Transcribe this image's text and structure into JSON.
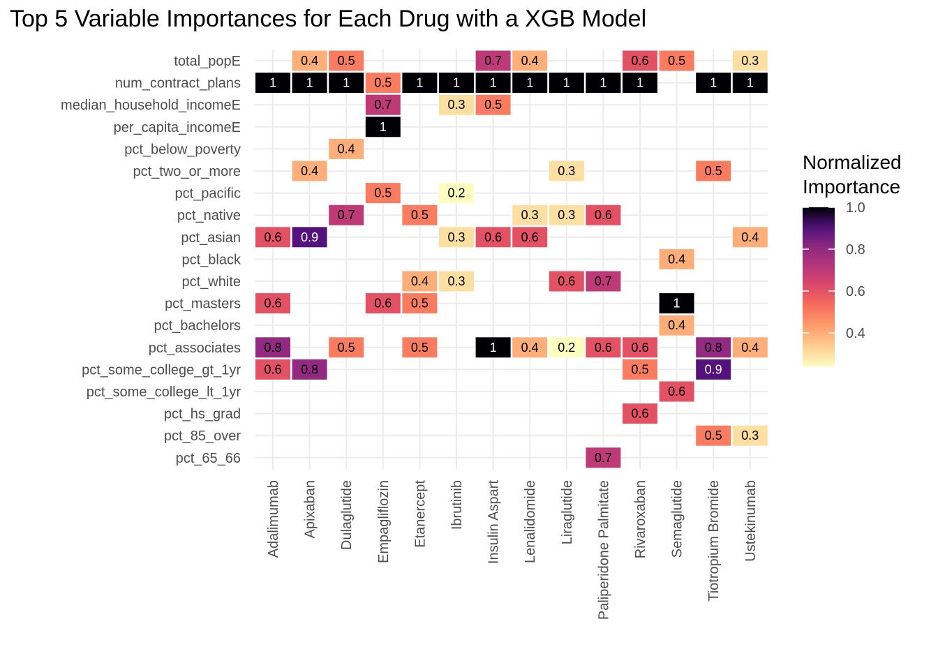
{
  "chart_data": {
    "type": "heatmap",
    "title": "Top 5 Variable Importances for Each Drug with a XGB Model",
    "xlabel": "",
    "ylabel": "",
    "x_categories": [
      "Adalimumab",
      "Apixaban",
      "Dulaglutide",
      "Empagliflozin",
      "Etanercept",
      "Ibrutinib",
      "Insulin Aspart",
      "Lenalidomide",
      "Liraglutide",
      "Paliperidone Palmitate",
      "Rivaroxaban",
      "Semaglutide",
      "Tiotropium Bromide",
      "Ustekinumab"
    ],
    "y_categories": [
      "total_popE",
      "num_contract_plans",
      "median_household_incomeE",
      "per_capita_incomeE",
      "pct_below_poverty",
      "pct_two_or_more",
      "pct_pacific",
      "pct_native",
      "pct_asian",
      "pct_black",
      "pct_white",
      "pct_masters",
      "pct_bachelors",
      "pct_associates",
      "pct_some_college_gt_1yr",
      "pct_some_college_lt_1yr",
      "pct_hs_grad",
      "pct_85_over",
      "pct_65_66"
    ],
    "cells": [
      {
        "x": "Apixaban",
        "y": "total_popE",
        "value": 0.4,
        "label": "0.4"
      },
      {
        "x": "Dulaglutide",
        "y": "total_popE",
        "value": 0.5,
        "label": "0.5"
      },
      {
        "x": "Insulin Aspart",
        "y": "total_popE",
        "value": 0.7,
        "label": "0.7"
      },
      {
        "x": "Lenalidomide",
        "y": "total_popE",
        "value": 0.4,
        "label": "0.4"
      },
      {
        "x": "Rivaroxaban",
        "y": "total_popE",
        "value": 0.6,
        "label": "0.6"
      },
      {
        "x": "Semaglutide",
        "y": "total_popE",
        "value": 0.5,
        "label": "0.5"
      },
      {
        "x": "Ustekinumab",
        "y": "total_popE",
        "value": 0.3,
        "label": "0.3"
      },
      {
        "x": "Adalimumab",
        "y": "num_contract_plans",
        "value": 1.0,
        "label": "1"
      },
      {
        "x": "Apixaban",
        "y": "num_contract_plans",
        "value": 1.0,
        "label": "1"
      },
      {
        "x": "Dulaglutide",
        "y": "num_contract_plans",
        "value": 1.0,
        "label": "1"
      },
      {
        "x": "Empagliflozin",
        "y": "num_contract_plans",
        "value": 0.5,
        "label": "0.5"
      },
      {
        "x": "Etanercept",
        "y": "num_contract_plans",
        "value": 1.0,
        "label": "1"
      },
      {
        "x": "Ibrutinib",
        "y": "num_contract_plans",
        "value": 1.0,
        "label": "1"
      },
      {
        "x": "Insulin Aspart",
        "y": "num_contract_plans",
        "value": 1.0,
        "label": "1"
      },
      {
        "x": "Lenalidomide",
        "y": "num_contract_plans",
        "value": 1.0,
        "label": "1"
      },
      {
        "x": "Liraglutide",
        "y": "num_contract_plans",
        "value": 1.0,
        "label": "1"
      },
      {
        "x": "Paliperidone Palmitate",
        "y": "num_contract_plans",
        "value": 1.0,
        "label": "1"
      },
      {
        "x": "Rivaroxaban",
        "y": "num_contract_plans",
        "value": 1.0,
        "label": "1"
      },
      {
        "x": "Tiotropium Bromide",
        "y": "num_contract_plans",
        "value": 1.0,
        "label": "1"
      },
      {
        "x": "Ustekinumab",
        "y": "num_contract_plans",
        "value": 1.0,
        "label": "1"
      },
      {
        "x": "Empagliflozin",
        "y": "median_household_incomeE",
        "value": 0.7,
        "label": "0.7"
      },
      {
        "x": "Ibrutinib",
        "y": "median_household_incomeE",
        "value": 0.3,
        "label": "0.3"
      },
      {
        "x": "Insulin Aspart",
        "y": "median_household_incomeE",
        "value": 0.5,
        "label": "0.5"
      },
      {
        "x": "Empagliflozin",
        "y": "per_capita_incomeE",
        "value": 1.0,
        "label": "1"
      },
      {
        "x": "Dulaglutide",
        "y": "pct_below_poverty",
        "value": 0.4,
        "label": "0.4"
      },
      {
        "x": "Apixaban",
        "y": "pct_two_or_more",
        "value": 0.4,
        "label": "0.4"
      },
      {
        "x": "Liraglutide",
        "y": "pct_two_or_more",
        "value": 0.3,
        "label": "0.3"
      },
      {
        "x": "Tiotropium Bromide",
        "y": "pct_two_or_more",
        "value": 0.5,
        "label": "0.5"
      },
      {
        "x": "Empagliflozin",
        "y": "pct_pacific",
        "value": 0.5,
        "label": "0.5"
      },
      {
        "x": "Ibrutinib",
        "y": "pct_pacific",
        "value": 0.2,
        "label": "0.2"
      },
      {
        "x": "Dulaglutide",
        "y": "pct_native",
        "value": 0.7,
        "label": "0.7"
      },
      {
        "x": "Etanercept",
        "y": "pct_native",
        "value": 0.5,
        "label": "0.5"
      },
      {
        "x": "Lenalidomide",
        "y": "pct_native",
        "value": 0.3,
        "label": "0.3"
      },
      {
        "x": "Liraglutide",
        "y": "pct_native",
        "value": 0.3,
        "label": "0.3"
      },
      {
        "x": "Paliperidone Palmitate",
        "y": "pct_native",
        "value": 0.6,
        "label": "0.6"
      },
      {
        "x": "Adalimumab",
        "y": "pct_asian",
        "value": 0.6,
        "label": "0.6"
      },
      {
        "x": "Apixaban",
        "y": "pct_asian",
        "value": 0.9,
        "label": "0.9"
      },
      {
        "x": "Ibrutinib",
        "y": "pct_asian",
        "value": 0.3,
        "label": "0.3"
      },
      {
        "x": "Insulin Aspart",
        "y": "pct_asian",
        "value": 0.6,
        "label": "0.6"
      },
      {
        "x": "Lenalidomide",
        "y": "pct_asian",
        "value": 0.6,
        "label": "0.6"
      },
      {
        "x": "Ustekinumab",
        "y": "pct_asian",
        "value": 0.4,
        "label": "0.4"
      },
      {
        "x": "Semaglutide",
        "y": "pct_black",
        "value": 0.4,
        "label": "0.4"
      },
      {
        "x": "Etanercept",
        "y": "pct_white",
        "value": 0.4,
        "label": "0.4"
      },
      {
        "x": "Ibrutinib",
        "y": "pct_white",
        "value": 0.3,
        "label": "0.3"
      },
      {
        "x": "Liraglutide",
        "y": "pct_white",
        "value": 0.6,
        "label": "0.6"
      },
      {
        "x": "Paliperidone Palmitate",
        "y": "pct_white",
        "value": 0.7,
        "label": "0.7"
      },
      {
        "x": "Adalimumab",
        "y": "pct_masters",
        "value": 0.6,
        "label": "0.6"
      },
      {
        "x": "Empagliflozin",
        "y": "pct_masters",
        "value": 0.6,
        "label": "0.6"
      },
      {
        "x": "Etanercept",
        "y": "pct_masters",
        "value": 0.5,
        "label": "0.5"
      },
      {
        "x": "Semaglutide",
        "y": "pct_masters",
        "value": 1.0,
        "label": "1"
      },
      {
        "x": "Semaglutide",
        "y": "pct_bachelors",
        "value": 0.4,
        "label": "0.4"
      },
      {
        "x": "Adalimumab",
        "y": "pct_associates",
        "value": 0.8,
        "label": "0.8"
      },
      {
        "x": "Dulaglutide",
        "y": "pct_associates",
        "value": 0.5,
        "label": "0.5"
      },
      {
        "x": "Etanercept",
        "y": "pct_associates",
        "value": 0.5,
        "label": "0.5"
      },
      {
        "x": "Insulin Aspart",
        "y": "pct_associates",
        "value": 1.0,
        "label": "1"
      },
      {
        "x": "Lenalidomide",
        "y": "pct_associates",
        "value": 0.4,
        "label": "0.4"
      },
      {
        "x": "Liraglutide",
        "y": "pct_associates",
        "value": 0.2,
        "label": "0.2"
      },
      {
        "x": "Paliperidone Palmitate",
        "y": "pct_associates",
        "value": 0.6,
        "label": "0.6"
      },
      {
        "x": "Rivaroxaban",
        "y": "pct_associates",
        "value": 0.6,
        "label": "0.6"
      },
      {
        "x": "Tiotropium Bromide",
        "y": "pct_associates",
        "value": 0.8,
        "label": "0.8"
      },
      {
        "x": "Ustekinumab",
        "y": "pct_associates",
        "value": 0.4,
        "label": "0.4"
      },
      {
        "x": "Adalimumab",
        "y": "pct_some_college_gt_1yr",
        "value": 0.6,
        "label": "0.6"
      },
      {
        "x": "Apixaban",
        "y": "pct_some_college_gt_1yr",
        "value": 0.8,
        "label": "0.8"
      },
      {
        "x": "Rivaroxaban",
        "y": "pct_some_college_gt_1yr",
        "value": 0.5,
        "label": "0.5"
      },
      {
        "x": "Tiotropium Bromide",
        "y": "pct_some_college_gt_1yr",
        "value": 0.9,
        "label": "0.9"
      },
      {
        "x": "Semaglutide",
        "y": "pct_some_college_lt_1yr",
        "value": 0.6,
        "label": "0.6"
      },
      {
        "x": "Rivaroxaban",
        "y": "pct_hs_grad",
        "value": 0.6,
        "label": "0.6"
      },
      {
        "x": "Tiotropium Bromide",
        "y": "pct_85_over",
        "value": 0.5,
        "label": "0.5"
      },
      {
        "x": "Ustekinumab",
        "y": "pct_85_over",
        "value": 0.3,
        "label": "0.3"
      },
      {
        "x": "Paliperidone Palmitate",
        "y": "pct_65_66",
        "value": 0.7,
        "label": "0.7"
      }
    ],
    "legend": {
      "title_lines": [
        "Normalized",
        "Importance"
      ],
      "ticks": [
        0.4,
        0.6,
        0.8,
        1.0
      ],
      "tick_labels": [
        "0.4",
        "0.6",
        "0.8",
        "1.0"
      ],
      "range": [
        0.24,
        1.0
      ],
      "placement": "right",
      "palette": "magma (reversed)"
    },
    "grid": true
  }
}
